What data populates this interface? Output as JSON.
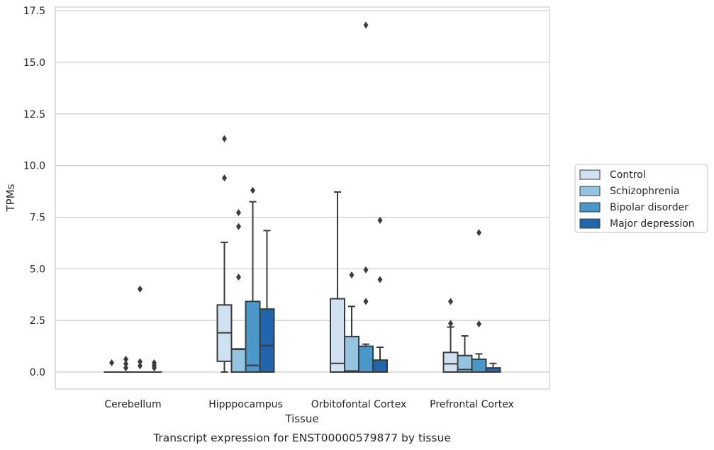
{
  "chart_data": {
    "type": "box",
    "xlabel": "Tissue",
    "ylabel": "TPMs",
    "caption": "Transcript expression for ENST00000579877 by tissue",
    "ylim": [
      -0.8,
      17.6
    ],
    "yticks": [
      0.0,
      2.5,
      5.0,
      7.5,
      10.0,
      12.5,
      15.0,
      17.5
    ],
    "ytick_labels": [
      "0.0",
      "2.5",
      "5.0",
      "7.5",
      "10.0",
      "12.5",
      "15.0",
      "17.5"
    ],
    "grid": "horizontal",
    "legend_position": "right",
    "categories": [
      "Cerebellum",
      "Hipppocampus",
      "Orbitofontal Cortex",
      "Prefrontal Cortex"
    ],
    "series": [
      {
        "name": "Control",
        "color": "#d0e1f2",
        "boxes": [
          {
            "whislo": 0.0,
            "q1": 0.0,
            "med": 0.0,
            "q3": 0.0,
            "whishi": 0.0,
            "fliers": [
              0.45
            ]
          },
          {
            "whislo": 0.0,
            "q1": 0.52,
            "med": 1.9,
            "q3": 3.25,
            "whishi": 6.28,
            "fliers": [
              9.4,
              11.3
            ]
          },
          {
            "whislo": 0.0,
            "q1": 0.0,
            "med": 0.42,
            "q3": 3.55,
            "whishi": 8.72,
            "fliers": []
          },
          {
            "whislo": 0.0,
            "q1": 0.0,
            "med": 0.4,
            "q3": 0.95,
            "whishi": 2.18,
            "fliers": [
              2.35,
              3.42
            ]
          }
        ]
      },
      {
        "name": "Schizophrenia",
        "color": "#94c4df",
        "boxes": [
          {
            "whislo": 0.0,
            "q1": 0.0,
            "med": 0.0,
            "q3": 0.0,
            "whishi": 0.0,
            "fliers": [
              0.2,
              0.4,
              0.62
            ]
          },
          {
            "whislo": 0.0,
            "q1": 0.0,
            "med": 1.1,
            "q3": 1.12,
            "whishi": 1.12,
            "fliers": [
              4.6,
              7.05,
              7.72
            ]
          },
          {
            "whislo": 0.0,
            "q1": 0.0,
            "med": 0.05,
            "q3": 1.72,
            "whishi": 3.18,
            "fliers": [
              4.7
            ]
          },
          {
            "whislo": 0.0,
            "q1": 0.0,
            "med": 0.12,
            "q3": 0.8,
            "whishi": 1.75,
            "fliers": []
          }
        ]
      },
      {
        "name": "Bipolar disorder",
        "color": "#4a98c9",
        "boxes": [
          {
            "whislo": 0.0,
            "q1": 0.0,
            "med": 0.0,
            "q3": 0.0,
            "whishi": 0.0,
            "fliers": [
              0.3,
              0.5,
              4.02
            ]
          },
          {
            "whislo": 0.0,
            "q1": 0.0,
            "med": 0.32,
            "q3": 3.42,
            "whishi": 8.25,
            "fliers": [
              8.8
            ]
          },
          {
            "whislo": 0.0,
            "q1": 0.0,
            "med": 0.0,
            "q3": 1.25,
            "whishi": 1.35,
            "fliers": [
              3.42,
              4.95,
              16.8
            ]
          },
          {
            "whislo": 0.0,
            "q1": 0.0,
            "med": 0.0,
            "q3": 0.62,
            "whishi": 0.88,
            "fliers": [
              2.33,
              6.75
            ]
          }
        ]
      },
      {
        "name": "Major depression",
        "color": "#2166ac",
        "boxes": [
          {
            "whislo": 0.0,
            "q1": 0.0,
            "med": 0.0,
            "q3": 0.0,
            "whishi": 0.0,
            "fliers": [
              0.2,
              0.32,
              0.45
            ]
          },
          {
            "whislo": 0.0,
            "q1": 0.0,
            "med": 1.28,
            "q3": 3.05,
            "whishi": 6.85,
            "fliers": []
          },
          {
            "whislo": 0.0,
            "q1": 0.0,
            "med": 0.0,
            "q3": 0.58,
            "whishi": 1.2,
            "fliers": [
              4.48,
              7.35
            ]
          },
          {
            "whislo": 0.0,
            "q1": 0.0,
            "med": 0.0,
            "q3": 0.2,
            "whishi": 0.42,
            "fliers": []
          }
        ]
      }
    ]
  }
}
